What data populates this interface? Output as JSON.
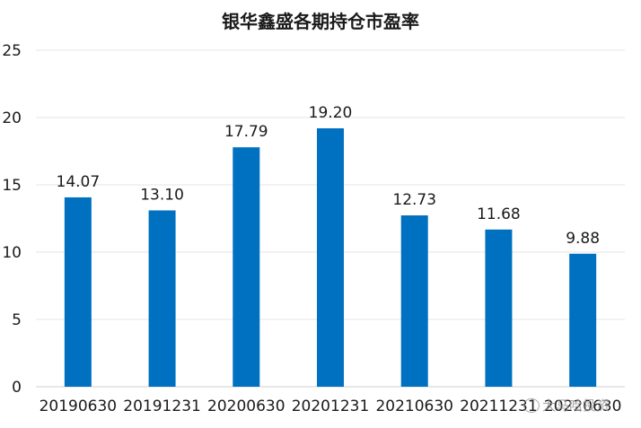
{
  "chart_data": {
    "type": "bar",
    "title": "银华鑫盛各期持仓市盈率",
    "categories": [
      "20190630",
      "20191231",
      "20200630",
      "20201231",
      "20210630",
      "20211231",
      "20220630"
    ],
    "values": [
      14.07,
      13.1,
      17.79,
      19.2,
      12.73,
      11.68,
      9.88
    ],
    "data_labels": [
      "14.07",
      "13.10",
      "17.79",
      "19.20",
      "12.73",
      "11.68",
      "9.88"
    ],
    "ylim": [
      0,
      25
    ],
    "yticks": [
      0,
      5,
      10,
      15,
      20,
      25
    ],
    "xlabel": "",
    "ylabel": "",
    "grid": true,
    "bar_color": "#0070c0",
    "gridline_color": "#e6e6e6",
    "text_color": "#1a1a1a"
  },
  "watermark": {
    "text": "大马哈投资"
  }
}
